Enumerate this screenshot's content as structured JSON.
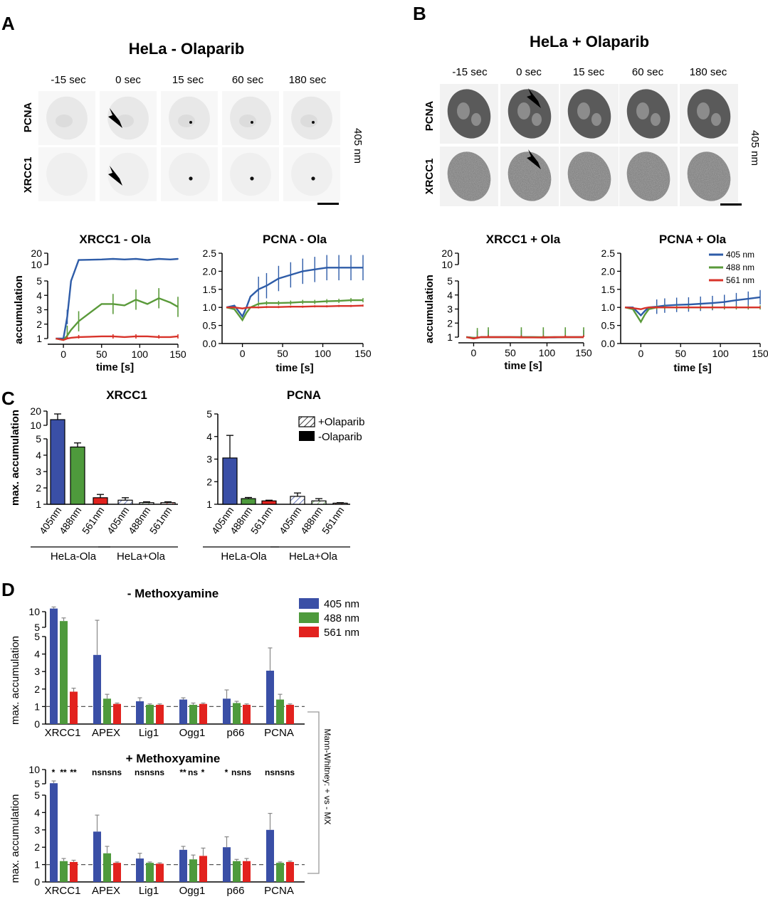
{
  "colors": {
    "nm405": "#2e5ca8",
    "nm488": "#5a9a3a",
    "nm561": "#d8332a",
    "bar405": "#3a4fa6",
    "bar488": "#4e9a3c",
    "bar561": "#e2221e"
  },
  "panelA": {
    "letter": "A",
    "title": "HeLa - Olaparib",
    "timepoints": [
      "-15 sec",
      "0 sec",
      "15 sec",
      "60 sec",
      "180 sec"
    ],
    "rows": [
      "PCNA",
      "XRCC1"
    ],
    "wavelength": "405 nm"
  },
  "panelB": {
    "letter": "B",
    "title": "HeLa + Olaparib",
    "timepoints": [
      "-15 sec",
      "0 sec",
      "15 sec",
      "60 sec",
      "180 sec"
    ],
    "rows": [
      "PCNA",
      "XRCC1"
    ],
    "wavelength": "405 nm"
  },
  "panelC": {
    "letter": "C"
  },
  "panelD": {
    "letter": "D",
    "stat_note": "Mann-Whitney: + vs - MX"
  },
  "chart_data": [
    {
      "id": "A_xrcc1",
      "type": "line",
      "title": "XRCC1 - Ola",
      "xlabel": "time [s]",
      "ylabel": "accumulation",
      "xlim": [
        -15,
        150
      ],
      "yticks_low": [
        "1",
        "2",
        "3",
        "4",
        "5"
      ],
      "yticks_high": [
        "10",
        "20"
      ],
      "x": [
        -10,
        0,
        5,
        10,
        20,
        50,
        65,
        80,
        95,
        110,
        125,
        140,
        150
      ],
      "series": [
        {
          "name": "405 nm",
          "values": [
            1,
            1,
            2.5,
            5,
            14,
            14.5,
            15,
            14.5,
            15,
            14,
            15,
            14.5,
            15
          ]
        },
        {
          "name": "488 nm",
          "values": [
            1,
            0.9,
            1.2,
            1.6,
            2.2,
            3.4,
            3.4,
            3.3,
            3.7,
            3.4,
            3.8,
            3.5,
            3.2
          ]
        },
        {
          "name": "561 nm",
          "values": [
            1,
            0.9,
            1.0,
            1.05,
            1.1,
            1.15,
            1.15,
            1.1,
            1.15,
            1.15,
            1.1,
            1.1,
            1.15
          ]
        }
      ]
    },
    {
      "id": "A_pcna",
      "type": "line",
      "title": "PCNA - Ola",
      "xlabel": "time [s]",
      "ylabel": "",
      "xlim": [
        -20,
        150
      ],
      "ylim": [
        0,
        2.5
      ],
      "yticks": [
        "0.0",
        "0.5",
        "1.0",
        "1.5",
        "2.0",
        "2.5"
      ],
      "x": [
        -20,
        -10,
        0,
        5,
        10,
        20,
        30,
        45,
        60,
        75,
        90,
        105,
        120,
        135,
        150
      ],
      "series": [
        {
          "name": "405 nm",
          "values": [
            1.0,
            1.05,
            0.75,
            1.0,
            1.3,
            1.5,
            1.6,
            1.8,
            1.9,
            2.0,
            2.05,
            2.1,
            2.1,
            2.1,
            2.1
          ]
        },
        {
          "name": "488 nm",
          "values": [
            1.0,
            0.95,
            0.65,
            0.85,
            1.0,
            1.1,
            1.12,
            1.12,
            1.13,
            1.15,
            1.15,
            1.17,
            1.18,
            1.2,
            1.2
          ]
        },
        {
          "name": "561 nm",
          "values": [
            1.0,
            1.0,
            0.97,
            0.99,
            1.0,
            1.0,
            1.01,
            1.01,
            1.02,
            1.02,
            1.03,
            1.03,
            1.04,
            1.04,
            1.05
          ]
        }
      ]
    },
    {
      "id": "B_xrcc1",
      "type": "line",
      "title": "XRCC1 + Ola",
      "xlabel": "time [s]",
      "ylabel": "accumulation",
      "xlim": [
        -15,
        150
      ],
      "yticks_low": [
        "1",
        "2",
        "3",
        "4",
        "5"
      ],
      "yticks_high": [
        "10",
        "20"
      ],
      "x": [
        -10,
        0,
        5,
        10,
        20,
        50,
        65,
        80,
        95,
        110,
        125,
        140,
        150
      ],
      "series": [
        {
          "name": "405 nm",
          "values": [
            1,
            0.95,
            0.95,
            1,
            1,
            1,
            1,
            1,
            0.98,
            0.98,
            1,
            1,
            1
          ]
        },
        {
          "name": "488 nm",
          "values": [
            1,
            0.95,
            0.95,
            1,
            1,
            1,
            1,
            1,
            1,
            1,
            1,
            1,
            1
          ]
        },
        {
          "name": "561 nm",
          "values": [
            1,
            0.9,
            0.95,
            1,
            1,
            1,
            0.98,
            0.98,
            0.97,
            1,
            1,
            1,
            1
          ]
        }
      ]
    },
    {
      "id": "B_pcna",
      "type": "line",
      "title": "PCNA + Ola",
      "xlabel": "time [s]",
      "ylabel": "",
      "xlim": [
        -20,
        150
      ],
      "ylim": [
        0,
        2.5
      ],
      "yticks": [
        "0.0",
        "0.5",
        "1.0",
        "1.5",
        "2.0",
        "2.5"
      ],
      "legend": [
        "405 nm",
        "488 nm",
        "561 nm"
      ],
      "x": [
        -20,
        -10,
        0,
        5,
        10,
        20,
        30,
        45,
        60,
        75,
        90,
        105,
        120,
        135,
        150
      ],
      "series": [
        {
          "name": "405 nm",
          "values": [
            1.0,
            1.0,
            0.78,
            0.9,
            1.0,
            1.02,
            1.05,
            1.07,
            1.08,
            1.1,
            1.12,
            1.15,
            1.2,
            1.24,
            1.28
          ]
        },
        {
          "name": "488 nm",
          "values": [
            1.0,
            0.95,
            0.6,
            0.8,
            0.95,
            1.0,
            1.0,
            1.0,
            1.0,
            1.0,
            1.0,
            1.0,
            1.0,
            1.0,
            1.0
          ]
        },
        {
          "name": "561 nm",
          "values": [
            1.0,
            0.98,
            0.95,
            0.98,
            1.0,
            1.0,
            1.0,
            1.0,
            1.0,
            1.0,
            1.0,
            1.0,
            1.0,
            1.0,
            1.0
          ]
        }
      ]
    },
    {
      "id": "C_xrcc1",
      "type": "bar",
      "title": "XRCC1",
      "ylabel": "max. accumulation",
      "categories": [
        "405nm",
        "488nm",
        "561nm",
        "405nm",
        "488nm",
        "561nm"
      ],
      "groups": [
        "HeLa-Ola",
        "HeLa+Ola"
      ],
      "values": [
        14,
        4.5,
        1.4,
        1.25,
        1.1,
        1.1
      ],
      "errors": [
        4,
        0.25,
        0.2,
        0.15,
        0.05,
        0.05
      ],
      "yticks_low": [
        "1",
        "2",
        "3",
        "4",
        "5"
      ],
      "yticks_high": [
        "10",
        "20"
      ],
      "legend": [
        "+Olaparib",
        "-Olaparib"
      ]
    },
    {
      "id": "C_pcna",
      "type": "bar",
      "title": "PCNA",
      "ylabel": "",
      "categories": [
        "405nm",
        "488nm",
        "561nm",
        "405nm",
        "488nm",
        "561nm"
      ],
      "groups": [
        "HeLa-Ola",
        "HeLa+Ola"
      ],
      "values": [
        3.05,
        1.25,
        1.15,
        1.35,
        1.15,
        1.05
      ],
      "errors": [
        1.0,
        0.05,
        0.03,
        0.15,
        0.1,
        0.02
      ],
      "ylim": [
        1,
        5
      ],
      "yticks": [
        "1",
        "2",
        "3",
        "4",
        "5"
      ]
    },
    {
      "id": "D_minus",
      "type": "bar",
      "title": "- Methoxyamine",
      "ylabel": "max. accumulation",
      "categories": [
        "XRCC1",
        "APEX",
        "Lig1",
        "Ogg1",
        "p66",
        "PCNA"
      ],
      "series": [
        {
          "name": "405 nm",
          "values": [
            11,
            3.95,
            1.3,
            1.4,
            1.45,
            3.05
          ],
          "errors": [
            2,
            3.3,
            0.2,
            0.1,
            0.5,
            1.3
          ]
        },
        {
          "name": "488 nm",
          "values": [
            7,
            1.45,
            1.1,
            1.1,
            1.2,
            1.4
          ],
          "errors": [
            1,
            0.25,
            0.05,
            0.1,
            0.1,
            0.3
          ]
        },
        {
          "name": "561 nm",
          "values": [
            1.85,
            1.15,
            1.1,
            1.15,
            1.1,
            1.1
          ],
          "errors": [
            0.2,
            0.05,
            0.05,
            0.05,
            0.05,
            0.05
          ]
        }
      ],
      "yticks_low": [
        "0",
        "1",
        "2",
        "3",
        "4",
        "5"
      ],
      "yticks_high": [
        "5",
        "10"
      ],
      "legend": [
        "405 nm",
        "488 nm",
        "561 nm"
      ]
    },
    {
      "id": "D_plus",
      "type": "bar",
      "title": "+ Methoxyamine",
      "ylabel": "max. accumulation",
      "categories": [
        "XRCC1",
        "APEX",
        "Lig1",
        "Ogg1",
        "p66",
        "PCNA"
      ],
      "series": [
        {
          "name": "405 nm",
          "values": [
            5.2,
            2.9,
            1.35,
            1.85,
            2.0,
            3.0
          ],
          "errors": [
            0.8,
            0.95,
            0.3,
            0.2,
            0.6,
            0.95
          ]
        },
        {
          "name": "488 nm",
          "values": [
            1.2,
            1.65,
            1.1,
            1.3,
            1.2,
            1.1
          ],
          "errors": [
            0.15,
            0.4,
            0.05,
            0.25,
            0.1,
            0.05
          ]
        },
        {
          "name": "561 nm",
          "values": [
            1.15,
            1.1,
            1.05,
            1.5,
            1.2,
            1.15
          ],
          "errors": [
            0.1,
            0.05,
            0.05,
            0.45,
            0.15,
            0.05
          ]
        }
      ],
      "significance": [
        "*",
        "**",
        "**",
        "ns",
        "ns",
        "ns",
        "ns",
        "ns",
        "ns",
        "**",
        "ns",
        "*",
        "*",
        "ns",
        "ns",
        "ns",
        "ns",
        "ns"
      ],
      "yticks_low": [
        "0",
        "1",
        "2",
        "3",
        "4",
        "5"
      ],
      "yticks_high": [
        "5",
        "10"
      ]
    }
  ]
}
